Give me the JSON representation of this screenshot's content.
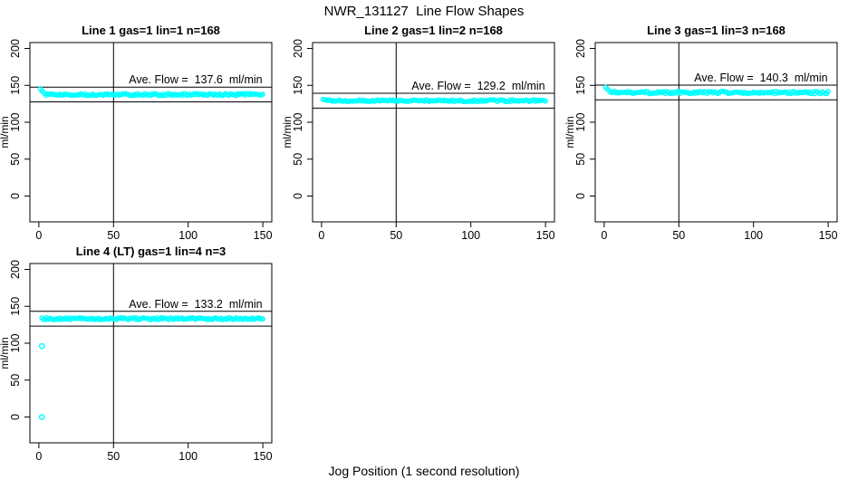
{
  "figure": {
    "title": "NWR_131127  Line Flow Shapes",
    "xlabel": "Jog Position (1 second resolution)",
    "background": "#ffffff",
    "axis_color": "#000000",
    "point_color": "#00ffff"
  },
  "chart_data": {
    "type": "scatter",
    "title": "NWR_131127  Line Flow Shapes",
    "xlabel": "Jog Position (1 second resolution)",
    "grid": false,
    "legend": null,
    "marker": "open-circle",
    "marker_color": "#00ffff",
    "panels": [
      {
        "title": "Line 1 gas=1 lin=1 n=168",
        "ylabel": "ml/min",
        "annotation": "Ave. Flow =  137.6  ml/min",
        "ave_flow_ml_min": 137.6,
        "n_points": 168,
        "ref_lines_y": [
          147.6,
          127.6
        ],
        "vline_x": 50,
        "xlim": [
          -6,
          156
        ],
        "ylim": [
          -35,
          208
        ],
        "xticks": [
          0,
          50,
          100,
          150
        ],
        "yticks": [
          0,
          50,
          100,
          150,
          200
        ],
        "series": {
          "description": "steady flow band with brief startup spike",
          "x_start": 1,
          "x_end": 150,
          "level": 137.6,
          "noise_amplitude": 1.4,
          "startup_offsets": [
            8,
            5,
            3,
            1
          ],
          "outliers": []
        }
      },
      {
        "title": "Line 2 gas=1 lin=2 n=168",
        "ylabel": "ml/min",
        "annotation": "Ave. Flow =  129.2  ml/min",
        "ave_flow_ml_min": 129.2,
        "n_points": 168,
        "ref_lines_y": [
          139.2,
          119.2
        ],
        "vline_x": 50,
        "xlim": [
          -6,
          156
        ],
        "ylim": [
          -35,
          208
        ],
        "xticks": [
          0,
          50,
          100,
          150
        ],
        "yticks": [
          0,
          50,
          100,
          150,
          200
        ],
        "series": {
          "description": "steady flat flow band",
          "x_start": 1,
          "x_end": 150,
          "level": 129.2,
          "noise_amplitude": 1.3,
          "startup_offsets": [
            2
          ],
          "outliers": []
        }
      },
      {
        "title": "Line 3 gas=1 lin=3 n=168",
        "ylabel": "ml/min",
        "annotation": "Ave. Flow =  140.3  ml/min",
        "ave_flow_ml_min": 140.3,
        "n_points": 168,
        "ref_lines_y": [
          150.3,
          130.3
        ],
        "vline_x": 50,
        "xlim": [
          -6,
          156
        ],
        "ylim": [
          -35,
          208
        ],
        "xticks": [
          0,
          50,
          100,
          150
        ],
        "yticks": [
          0,
          50,
          100,
          150,
          200
        ],
        "series": {
          "description": "steady flow band with brief startup spike",
          "x_start": 1,
          "x_end": 150,
          "level": 140.3,
          "noise_amplitude": 1.7,
          "startup_offsets": [
            7,
            5,
            3,
            1
          ],
          "outliers": []
        }
      },
      {
        "title": "Line 4 (LT) gas=1 lin=4 n=3",
        "ylabel": "ml/min",
        "annotation": "Ave. Flow =  133.2  ml/min",
        "ave_flow_ml_min": 133.2,
        "n_points": 3,
        "ref_lines_y": [
          143.2,
          123.2
        ],
        "vline_x": 50,
        "xlim": [
          -6,
          156
        ],
        "ylim": [
          -35,
          208
        ],
        "xticks": [
          0,
          50,
          100,
          150
        ],
        "yticks": [
          0,
          50,
          100,
          150,
          200
        ],
        "series": {
          "description": "steady flow band plus two low startup outliers",
          "x_start": 2,
          "x_end": 150,
          "level": 133.2,
          "noise_amplitude": 1.4,
          "startup_offsets": [
            1
          ],
          "outliers": [
            [
              2,
              96
            ],
            [
              2,
              0
            ]
          ]
        }
      }
    ]
  }
}
